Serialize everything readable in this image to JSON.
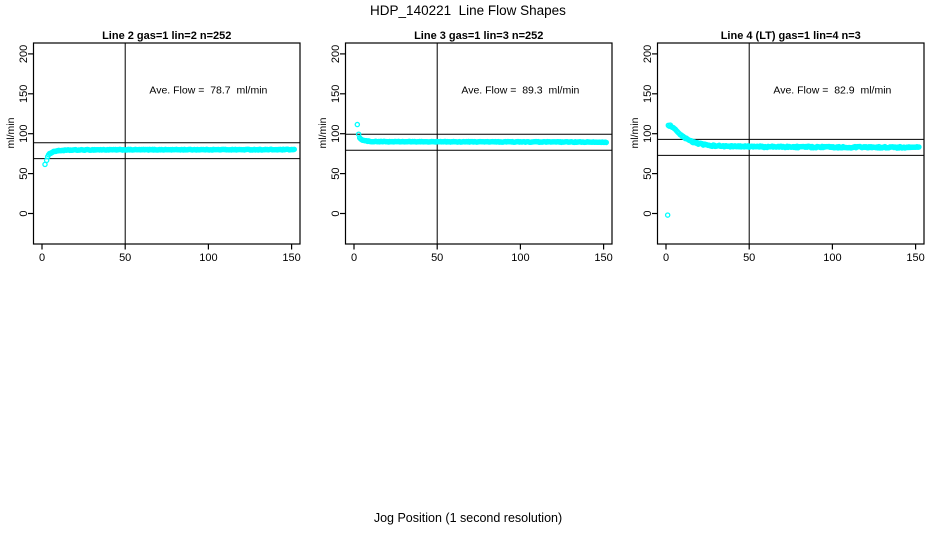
{
  "figure": {
    "title": "HDP_140221  Line Flow Shapes",
    "xlabel": "Jog Position (1 second resolution)",
    "background": "#ffffff",
    "point_color": "#00ffff",
    "line_color": "#000000",
    "text_color": "#000000"
  },
  "chart_data": [
    {
      "type": "scatter",
      "title": "Line 2 gas=1 lin=2 n=252",
      "annotation": "Ave. Flow =  78.7  ml/min",
      "ave_flow": 78.7,
      "ylabel": "ml/min",
      "x_ticks": [
        0,
        50,
        100,
        150
      ],
      "y_ticks": [
        0,
        50,
        100,
        150,
        200
      ],
      "xlim": [
        -6,
        156
      ],
      "ylim": [
        -38,
        214
      ],
      "grid": false,
      "vline_x": 50,
      "hlines": [
        88.7,
        68.7
      ],
      "outliers": [
        [
          1.8,
          61.5
        ]
      ],
      "profile": [
        [
          2.8,
          67
        ],
        [
          3.2,
          70
        ],
        [
          3.8,
          72.8
        ],
        [
          4.6,
          74.8
        ],
        [
          5.6,
          76.4
        ],
        [
          7,
          77.6
        ],
        [
          9,
          78.5
        ],
        [
          12,
          79.1
        ],
        [
          18,
          79.5
        ],
        [
          30,
          79.8
        ],
        [
          60,
          79.9
        ],
        [
          100,
          80
        ],
        [
          152,
          80
        ]
      ],
      "jitter": 0.45,
      "step": 0.6
    },
    {
      "type": "scatter",
      "title": "Line 3 gas=1 lin=3 n=252",
      "annotation": "Ave. Flow =  89.3  ml/min",
      "ave_flow": 89.3,
      "ylabel": "ml/min",
      "x_ticks": [
        0,
        50,
        100,
        150
      ],
      "y_ticks": [
        0,
        50,
        100,
        150,
        200
      ],
      "xlim": [
        -6,
        156
      ],
      "ylim": [
        -38,
        214
      ],
      "grid": false,
      "vline_x": 50,
      "hlines": [
        99.3,
        79.3
      ],
      "outliers": [
        [
          2,
          111.5
        ]
      ],
      "profile": [
        [
          2.8,
          99.5
        ],
        [
          3.1,
          96.5
        ],
        [
          3.6,
          94.3
        ],
        [
          4.3,
          92.8
        ],
        [
          5.2,
          91.8
        ],
        [
          6.5,
          91.1
        ],
        [
          8.5,
          90.6
        ],
        [
          12,
          90.2
        ],
        [
          20,
          90
        ],
        [
          40,
          89.9
        ],
        [
          80,
          89.8
        ],
        [
          120,
          89.6
        ],
        [
          152,
          89.4
        ]
      ],
      "jitter": 0.4,
      "step": 0.6
    },
    {
      "type": "scatter",
      "title": "Line 4 (LT) gas=1 lin=4 n=3",
      "annotation": "Ave. Flow =  82.9  ml/min",
      "ave_flow": 82.9,
      "ylabel": "ml/min",
      "x_ticks": [
        0,
        50,
        100,
        150
      ],
      "y_ticks": [
        0,
        50,
        100,
        150,
        200
      ],
      "xlim": [
        -6,
        156
      ],
      "ylim": [
        -38,
        214
      ],
      "grid": false,
      "vline_x": 50,
      "hlines": [
        92.9,
        72.9
      ],
      "outliers": [
        [
          1,
          -2
        ]
      ],
      "profile": [
        [
          1.4,
          109.8
        ],
        [
          2.2,
          110.4
        ],
        [
          3,
          109.6
        ],
        [
          4,
          107.8
        ],
        [
          5,
          105.8
        ],
        [
          6.2,
          103.3
        ],
        [
          7.5,
          100.7
        ],
        [
          9,
          97.9
        ],
        [
          10.5,
          95.6
        ],
        [
          12,
          93.7
        ],
        [
          14,
          91.6
        ],
        [
          16,
          89.9
        ],
        [
          18,
          88.5
        ],
        [
          20,
          87.4
        ],
        [
          23,
          86.2
        ],
        [
          26,
          85.4
        ],
        [
          30,
          84.8
        ],
        [
          35,
          84.3
        ],
        [
          42,
          84
        ],
        [
          50,
          83.8
        ],
        [
          62,
          83.6
        ],
        [
          78,
          83.4
        ],
        [
          95,
          83.2
        ],
        [
          115,
          83
        ],
        [
          135,
          82.9
        ],
        [
          152,
          82.8
        ]
      ],
      "jitter": 0.95,
      "step": 0.6
    }
  ]
}
